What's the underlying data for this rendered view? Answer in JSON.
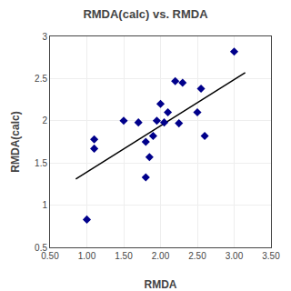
{
  "chart_data": {
    "type": "scatter",
    "title": "RMDA(calc) vs. RMDA",
    "xlabel": "RMDA",
    "ylabel": "RMDA(calc)",
    "series": [
      {
        "type": "scatter",
        "marker": "diamond",
        "color": "#00008B",
        "x": [
          1.0,
          1.1,
          1.1,
          1.5,
          1.7,
          1.8,
          1.8,
          1.85,
          1.9,
          1.95,
          2.0,
          2.05,
          2.1,
          2.2,
          2.25,
          2.3,
          2.5,
          2.55,
          2.6,
          3.0
        ],
        "values": [
          0.83,
          1.67,
          1.78,
          2.0,
          1.98,
          1.75,
          1.33,
          1.57,
          1.82,
          2.0,
          2.2,
          1.98,
          2.1,
          2.47,
          1.97,
          2.45,
          2.1,
          2.38,
          1.82,
          2.82
        ]
      },
      {
        "type": "line",
        "line_style": "solid",
        "color": "#000000",
        "x": [
          0.85,
          3.15
        ],
        "values": [
          1.31,
          2.57
        ]
      }
    ],
    "xlim": [
      0.5,
      3.5
    ],
    "ylim": [
      0.5,
      3.0
    ],
    "xticks": [
      {
        "value": 0.5,
        "label": "0.50"
      },
      {
        "value": 1.0,
        "label": "1.00"
      },
      {
        "value": 1.5,
        "label": "1.50"
      },
      {
        "value": 2.0,
        "label": "2.00"
      },
      {
        "value": 2.5,
        "label": "2.50"
      },
      {
        "value": 3.0,
        "label": "3.00"
      },
      {
        "value": 3.5,
        "label": "3.50"
      }
    ],
    "yticks": [
      0.5,
      1,
      1.5,
      2,
      2.5,
      3
    ],
    "grid": true
  }
}
